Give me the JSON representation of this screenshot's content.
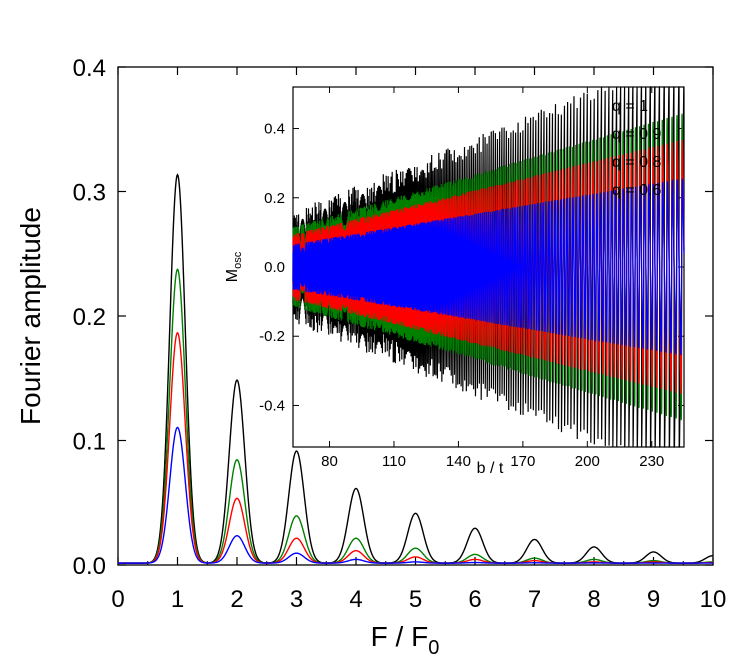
{
  "chart_data": [
    {
      "id": "main",
      "type": "line",
      "xlabel": "F / F",
      "xlabel_sub": "0",
      "ylabel": "Fourier amplitude",
      "xlim": [
        0,
        10
      ],
      "ylim": [
        0,
        0.4
      ],
      "xticks": [
        "0",
        "1",
        "2",
        "3",
        "4",
        "5",
        "6",
        "7",
        "8",
        "9",
        "10"
      ],
      "yticks": [
        "0.0",
        "0.1",
        "0.2",
        "0.3",
        "0.4"
      ],
      "peak_positions": [
        1,
        2,
        3,
        4,
        5,
        6,
        7,
        8,
        9,
        10
      ],
      "series": [
        {
          "name": "q = 1",
          "color": "#000000",
          "peaks": [
            0.312,
            0.147,
            0.09,
            0.06,
            0.04,
            0.028,
            0.019,
            0.013,
            0.009,
            0.006
          ]
        },
        {
          "name": "q = 0.9",
          "color": "#008000",
          "peaks": [
            0.236,
            0.083,
            0.038,
            0.02,
            0.012,
            0.007,
            0.004,
            0.003,
            0.002,
            0.001
          ]
        },
        {
          "name": "q = 0.8",
          "color": "#ff0000",
          "peaks": [
            0.185,
            0.052,
            0.02,
            0.01,
            0.005,
            0.003,
            0.002,
            0.001,
            0.001,
            0.0005
          ]
        },
        {
          "name": "q = 0.6",
          "color": "#0000ff",
          "peaks": [
            0.109,
            0.022,
            0.008,
            0.003,
            0.001,
            0.0005,
            0.0003,
            0.0002,
            0.0001,
            0.0001
          ]
        }
      ]
    },
    {
      "id": "inset",
      "type": "line",
      "xlabel": "b / t",
      "ylabel": "M",
      "ylabel_sub": "osc",
      "xlim": [
        63,
        245
      ],
      "ylim": [
        -0.52,
        0.52
      ],
      "xticks": [
        "80",
        "110",
        "140",
        "170",
        "200",
        "230"
      ],
      "xtick_values": [
        80,
        110,
        140,
        170,
        200,
        230
      ],
      "yticks": [
        "-0.4",
        "-0.2",
        "0.0",
        "0.2",
        "0.4"
      ],
      "ytick_values": [
        -0.4,
        -0.2,
        0.0,
        0.2,
        0.4
      ],
      "period_constant": 25000,
      "series": [
        {
          "name": "q = 1",
          "color": "#000000",
          "amplitude": 1.0
        },
        {
          "name": "q = 0.9",
          "color": "#008000",
          "amplitude": 0.9
        },
        {
          "name": "q = 0.8",
          "color": "#ff0000",
          "amplitude": 0.8
        },
        {
          "name": "q = 0.6",
          "color": "#0000ff",
          "amplitude": 0.6
        }
      ]
    }
  ]
}
